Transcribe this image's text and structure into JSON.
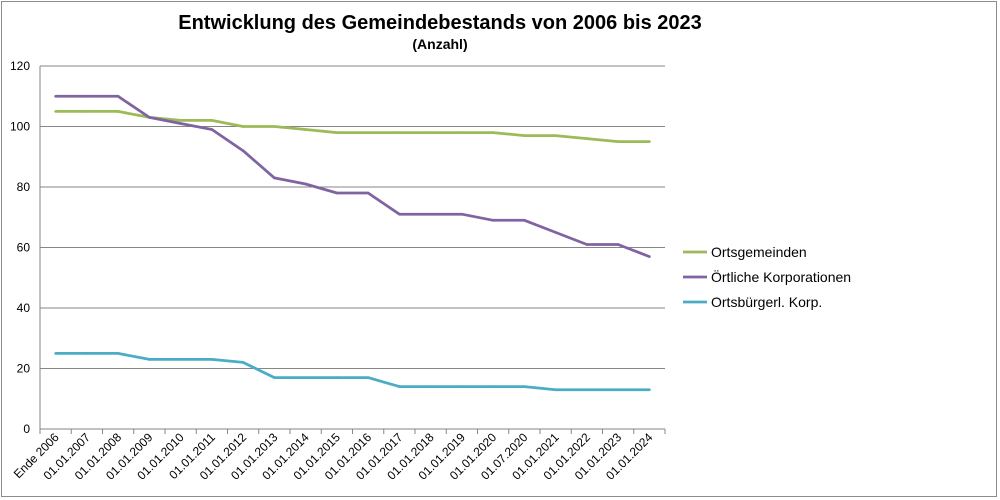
{
  "chart_data": {
    "type": "line",
    "title": "Entwicklung des Gemeindebestands von 2006 bis 2023",
    "subtitle": "(Anzahl)",
    "xlabel": "",
    "ylabel": "",
    "ylim": [
      0,
      120
    ],
    "yticks": [
      0,
      20,
      40,
      60,
      80,
      100,
      120
    ],
    "grid": true,
    "legend_position": "right",
    "categories": [
      "Ende 2006",
      "01.01.2007",
      "01.01.2008",
      "01.01.2009",
      "01.01.2010",
      "01.01.2011",
      "01.01.2012",
      "01.01.2013",
      "01.01.2014",
      "01.01.2015",
      "01.01.2016",
      "01.01.2017",
      "01.01.2018",
      "01.01.2019",
      "01.01.2020",
      "01.07.2020",
      "01.01.2021",
      "01.01.2022",
      "01.01.2023",
      "01.01.2024"
    ],
    "series": [
      {
        "name": "Ortsgemeinden",
        "color": "#9bbb59",
        "values": [
          105,
          105,
          105,
          103,
          102,
          102,
          100,
          100,
          99,
          98,
          98,
          98,
          98,
          98,
          98,
          97,
          97,
          96,
          95,
          95
        ]
      },
      {
        "name": "Örtliche Korporationen",
        "color": "#8064a2",
        "values": [
          110,
          110,
          110,
          103,
          101,
          99,
          92,
          83,
          81,
          78,
          78,
          71,
          71,
          71,
          69,
          69,
          65,
          61,
          61,
          57
        ]
      },
      {
        "name": "Ortsbürgerl. Korp.",
        "color": "#4bacc6",
        "values": [
          25,
          25,
          25,
          23,
          23,
          23,
          22,
          17,
          17,
          17,
          17,
          14,
          14,
          14,
          14,
          14,
          13,
          13,
          13,
          13
        ]
      }
    ]
  }
}
